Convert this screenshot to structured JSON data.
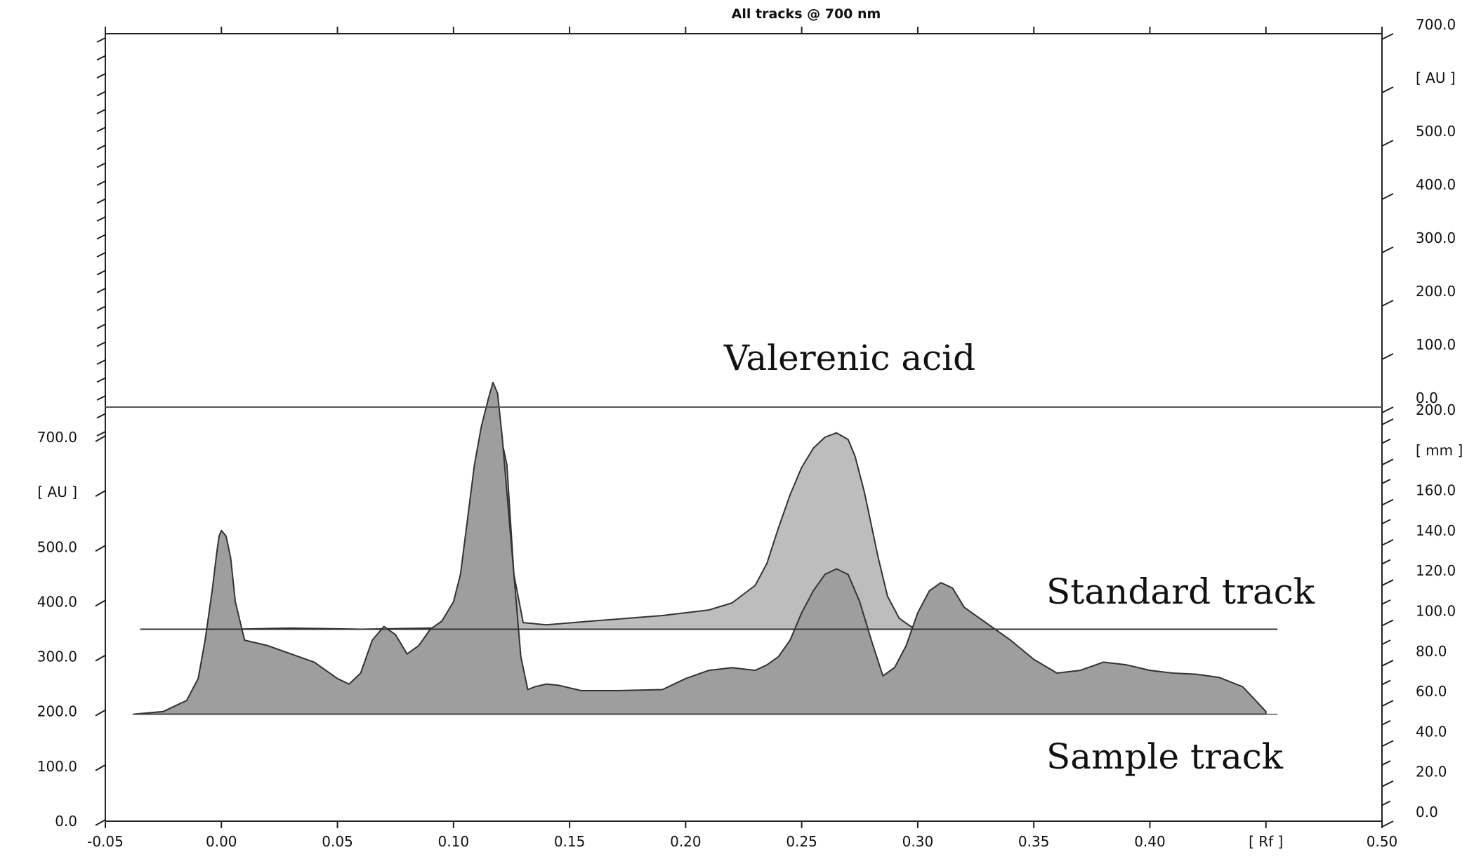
{
  "chart_data": {
    "type": "area",
    "title": "All tracks @ 700 nm",
    "x_axis": {
      "range": [
        -0.05,
        0.5
      ],
      "unit": "[ Rf ]",
      "ticks": [
        {
          "value": -0.05,
          "label": "-0.05"
        },
        {
          "value": 0.0,
          "label": "0.00"
        },
        {
          "value": 0.05,
          "label": "0.05"
        },
        {
          "value": 0.1,
          "label": "0.10"
        },
        {
          "value": 0.15,
          "label": "0.15"
        },
        {
          "value": 0.2,
          "label": "0.20"
        },
        {
          "value": 0.25,
          "label": "0.25"
        },
        {
          "value": 0.3,
          "label": "0.30"
        },
        {
          "value": 0.35,
          "label": "0.35"
        },
        {
          "value": 0.4,
          "label": "0.40"
        },
        {
          "value": 0.45,
          "label": "[ Rf ]"
        },
        {
          "value": 0.5,
          "label": "0.50"
        }
      ]
    },
    "left_axis": {
      "unit": "[ AU ]",
      "labels": [
        {
          "value": 0,
          "label": "0.0"
        },
        {
          "value": 100,
          "label": "100.0"
        },
        {
          "value": 200,
          "label": "200.0"
        },
        {
          "value": 300,
          "label": "300.0"
        },
        {
          "value": 400,
          "label": "400.0"
        },
        {
          "value": 500,
          "label": "500.0"
        },
        {
          "value": 600,
          "label": "[ AU ]"
        },
        {
          "value": 700,
          "label": "700.0"
        }
      ]
    },
    "right_upper_axis": {
      "unit": "[ AU ]",
      "labels": [
        {
          "value": 0,
          "label": "0.0"
        },
        {
          "value": 100,
          "label": "100.0"
        },
        {
          "value": 200,
          "label": "200.0"
        },
        {
          "value": 300,
          "label": "300.0"
        },
        {
          "value": 400,
          "label": "400.0"
        },
        {
          "value": 500,
          "label": "500.0"
        },
        {
          "value": 600,
          "label": "[ AU ]"
        },
        {
          "value": 700,
          "label": "700.0"
        }
      ]
    },
    "right_lower_axis": {
      "unit": "[ mm ]",
      "labels": [
        {
          "value": 0,
          "label": "0.0"
        },
        {
          "value": 20,
          "label": "20.0"
        },
        {
          "value": 40,
          "label": "40.0"
        },
        {
          "value": 60,
          "label": "60.0"
        },
        {
          "value": 80,
          "label": "80.0"
        },
        {
          "value": 100,
          "label": "100.0"
        },
        {
          "value": 120,
          "label": "120.0"
        },
        {
          "value": 140,
          "label": "140.0"
        },
        {
          "value": 160,
          "label": "160.0"
        },
        {
          "value": 180,
          "label": "[ mm ]"
        },
        {
          "value": 200,
          "label": "200.0"
        }
      ]
    },
    "annotations": {
      "compound": "Valerenic acid",
      "standard": "Standard track",
      "sample": "Sample track"
    },
    "series": [
      {
        "name": "Standard track",
        "color": "#bdbdbd",
        "baseline": 350,
        "x": [
          0.005,
          0.03,
          0.06,
          0.09,
          0.11,
          0.113,
          0.116,
          0.118,
          0.12,
          0.123,
          0.126,
          0.13,
          0.14,
          0.16,
          0.19,
          0.21,
          0.22,
          0.23,
          0.235,
          0.24,
          0.245,
          0.25,
          0.255,
          0.26,
          0.265,
          0.27,
          0.273,
          0.277,
          0.28,
          0.283,
          0.287,
          0.292,
          0.297,
          0.305
        ],
        "values": [
          350,
          352,
          350,
          352,
          355,
          450,
          600,
          690,
          710,
          650,
          450,
          362,
          358,
          365,
          375,
          385,
          398,
          430,
          470,
          535,
          595,
          645,
          680,
          700,
          708,
          696,
          665,
          600,
          540,
          480,
          410,
          370,
          355,
          350
        ]
      },
      {
        "name": "Sample track",
        "color": "#9e9e9e",
        "baseline": 195,
        "x": [
          -0.038,
          -0.025,
          -0.015,
          -0.01,
          -0.007,
          -0.004,
          -0.002,
          -0.001,
          0.0,
          0.002,
          0.004,
          0.006,
          0.01,
          0.02,
          0.03,
          0.04,
          0.05,
          0.055,
          0.06,
          0.065,
          0.07,
          0.075,
          0.08,
          0.085,
          0.09,
          0.095,
          0.1,
          0.103,
          0.106,
          0.109,
          0.112,
          0.115,
          0.117,
          0.119,
          0.121,
          0.123,
          0.126,
          0.129,
          0.132,
          0.135,
          0.14,
          0.145,
          0.155,
          0.17,
          0.19,
          0.2,
          0.21,
          0.22,
          0.23,
          0.235,
          0.24,
          0.245,
          0.25,
          0.255,
          0.26,
          0.265,
          0.27,
          0.275,
          0.28,
          0.285,
          0.29,
          0.295,
          0.3,
          0.305,
          0.31,
          0.315,
          0.32,
          0.33,
          0.34,
          0.35,
          0.36,
          0.37,
          0.38,
          0.39,
          0.4,
          0.41,
          0.42,
          0.43,
          0.44,
          0.45
        ],
        "values": [
          195,
          200,
          220,
          260,
          330,
          420,
          490,
          520,
          530,
          520,
          480,
          400,
          330,
          320,
          305,
          290,
          260,
          250,
          270,
          330,
          355,
          340,
          305,
          320,
          350,
          365,
          400,
          450,
          550,
          650,
          720,
          770,
          800,
          780,
          700,
          600,
          450,
          300,
          240,
          245,
          250,
          248,
          238,
          238,
          240,
          260,
          275,
          280,
          275,
          285,
          300,
          330,
          380,
          420,
          450,
          460,
          450,
          400,
          330,
          265,
          280,
          320,
          380,
          420,
          435,
          425,
          390,
          360,
          330,
          295,
          270,
          275,
          290,
          285,
          275,
          270,
          268,
          262,
          245,
          200
        ]
      }
    ]
  }
}
